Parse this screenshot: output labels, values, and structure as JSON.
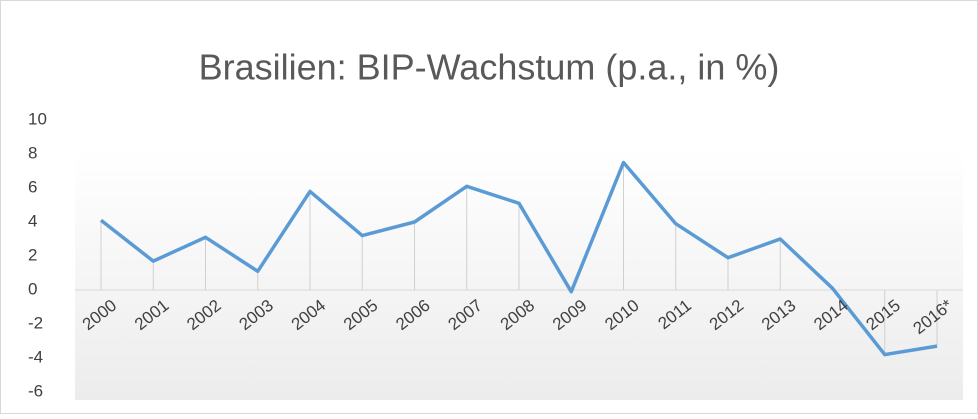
{
  "chart_data": {
    "type": "line",
    "title": "Brasilien: BIP-Wachstum (p.a., in %)",
    "categories": [
      "2000",
      "2001",
      "2002",
      "2003",
      "2004",
      "2005",
      "2006",
      "2007",
      "2008",
      "2009",
      "2010",
      "2011",
      "2012",
      "2013",
      "2014",
      "2015",
      "2016*"
    ],
    "series": [
      {
        "name": "BIP-Wachstum",
        "color": "#5b9bd5",
        "values": [
          4.1,
          1.7,
          3.1,
          1.1,
          5.8,
          3.2,
          4.0,
          6.1,
          5.1,
          -0.1,
          7.5,
          3.9,
          1.9,
          3.0,
          0.1,
          -3.8,
          -3.3
        ]
      }
    ],
    "ylim": [
      -6,
      10
    ],
    "yticks": [
      -6,
      -4,
      -2,
      0,
      2,
      4,
      6,
      8,
      10
    ],
    "drop_lines": true
  }
}
